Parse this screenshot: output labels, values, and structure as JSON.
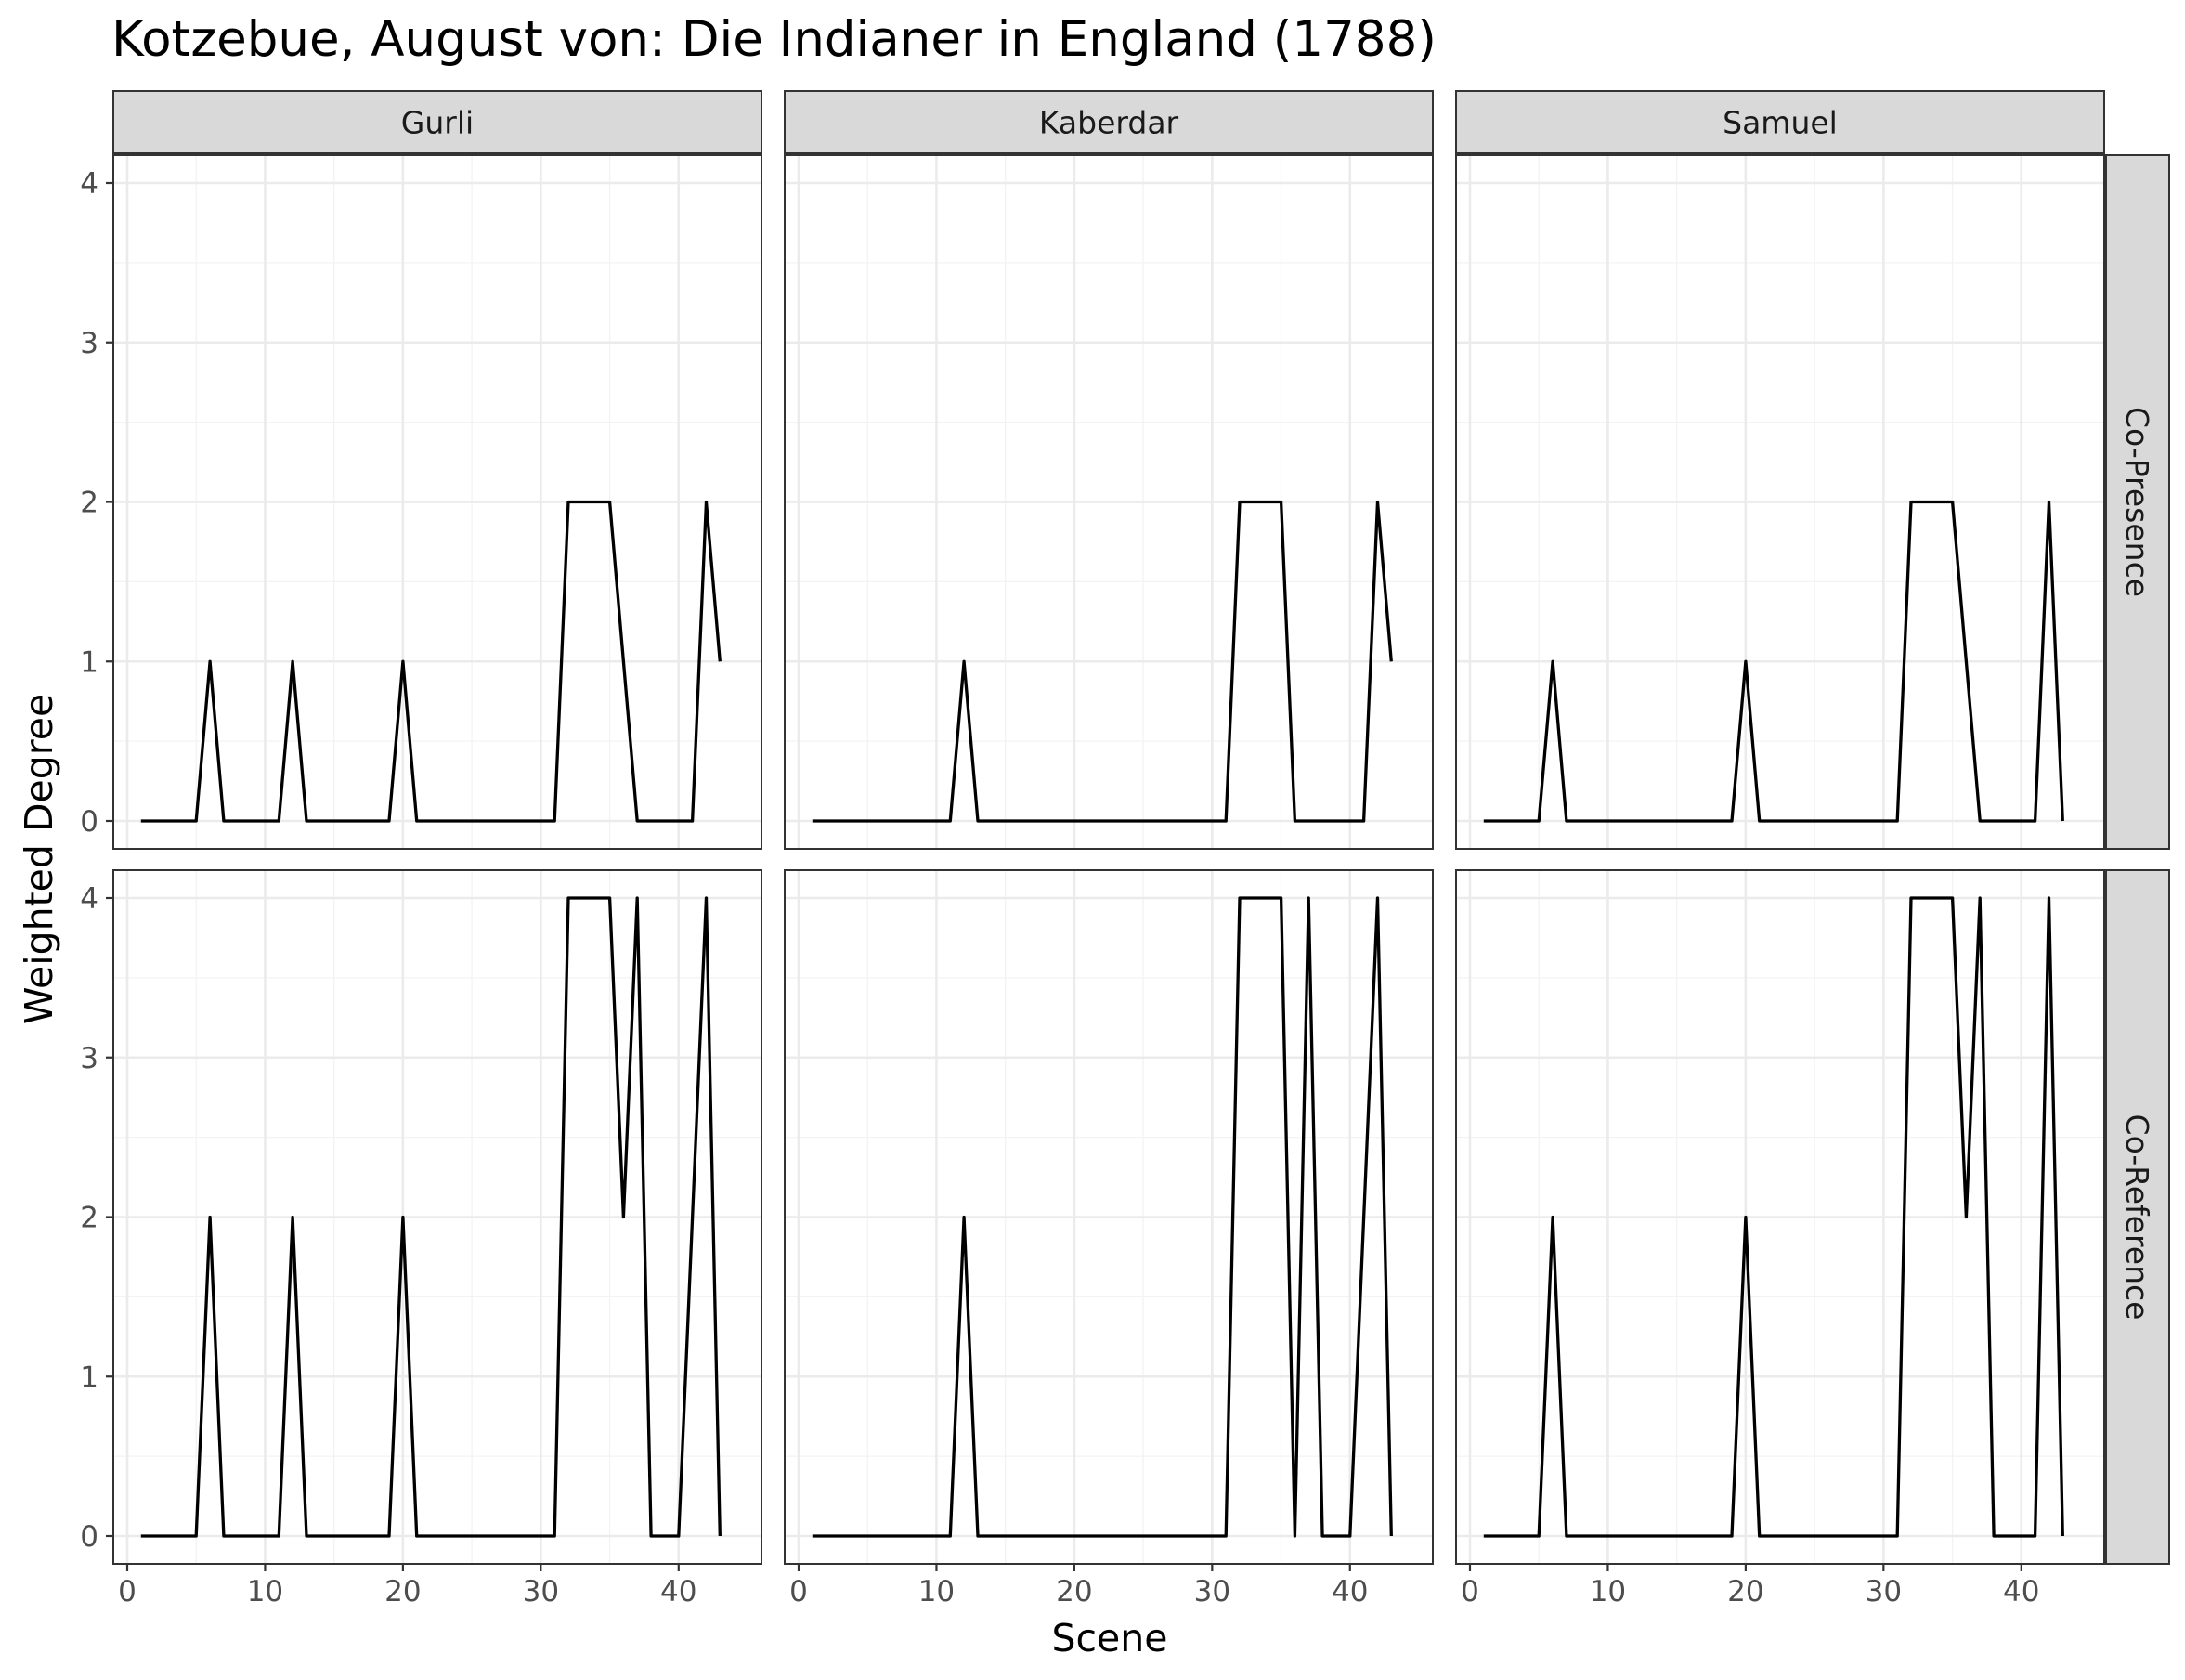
{
  "chart_data": {
    "type": "line",
    "title": "Kotzebue, August von: Die Indianer in England (1788)",
    "xlabel": "Scene",
    "ylabel": "Weighted Degree",
    "xlim": [
      0,
      45
    ],
    "ylim": [
      0,
      4
    ],
    "x_ticks": [
      "0",
      "10",
      "20",
      "30",
      "40"
    ],
    "y_ticks": [
      "0",
      "1",
      "2",
      "3",
      "4"
    ],
    "columns": [
      "Gurli",
      "Kaberdar",
      "Samuel"
    ],
    "rows": [
      "Co-Presence",
      "Co-Reference"
    ],
    "grid": true,
    "facets": [
      {
        "column": "Gurli",
        "row": "Co-Presence",
        "x": [
          1,
          5,
          6,
          7,
          11,
          12,
          13,
          19,
          20,
          21,
          31,
          32,
          33,
          34,
          35,
          36,
          37,
          41,
          42,
          43
        ],
        "y": [
          0,
          0,
          1,
          0,
          0,
          1,
          0,
          0,
          1,
          0,
          0,
          2,
          2,
          2,
          2,
          1,
          0,
          0,
          2,
          1
        ]
      },
      {
        "column": "Kaberdar",
        "row": "Co-Presence",
        "x": [
          1,
          11,
          12,
          13,
          31,
          32,
          33,
          34,
          35,
          36,
          41,
          42,
          43
        ],
        "y": [
          0,
          0,
          1,
          0,
          0,
          2,
          2,
          2,
          2,
          0,
          0,
          2,
          1
        ]
      },
      {
        "column": "Samuel",
        "row": "Co-Presence",
        "x": [
          1,
          5,
          6,
          7,
          19,
          20,
          21,
          31,
          32,
          33,
          34,
          35,
          36,
          37,
          41,
          42,
          43
        ],
        "y": [
          0,
          0,
          1,
          0,
          0,
          1,
          0,
          0,
          2,
          2,
          2,
          2,
          1,
          0,
          0,
          2,
          0
        ]
      },
      {
        "column": "Gurli",
        "row": "Co-Reference",
        "x": [
          1,
          5,
          6,
          7,
          11,
          12,
          13,
          19,
          20,
          21,
          31,
          32,
          33,
          34,
          35,
          36,
          37,
          38,
          40,
          42,
          43
        ],
        "y": [
          0,
          0,
          2,
          0,
          0,
          2,
          0,
          0,
          2,
          0,
          0,
          4,
          4,
          4,
          4,
          2,
          4,
          0,
          0,
          4,
          0
        ]
      },
      {
        "column": "Kaberdar",
        "row": "Co-Reference",
        "x": [
          1,
          11,
          12,
          13,
          31,
          32,
          33,
          34,
          35,
          36,
          37,
          38,
          40,
          42,
          43
        ],
        "y": [
          0,
          0,
          2,
          0,
          0,
          4,
          4,
          4,
          4,
          0,
          4,
          0,
          0,
          4,
          0
        ]
      },
      {
        "column": "Samuel",
        "row": "Co-Reference",
        "x": [
          1,
          5,
          6,
          7,
          19,
          20,
          21,
          31,
          32,
          33,
          34,
          35,
          36,
          37,
          38,
          41,
          42,
          43
        ],
        "y": [
          0,
          0,
          2,
          0,
          0,
          2,
          0,
          0,
          4,
          4,
          4,
          4,
          2,
          4,
          0,
          0,
          4,
          0
        ]
      }
    ]
  }
}
